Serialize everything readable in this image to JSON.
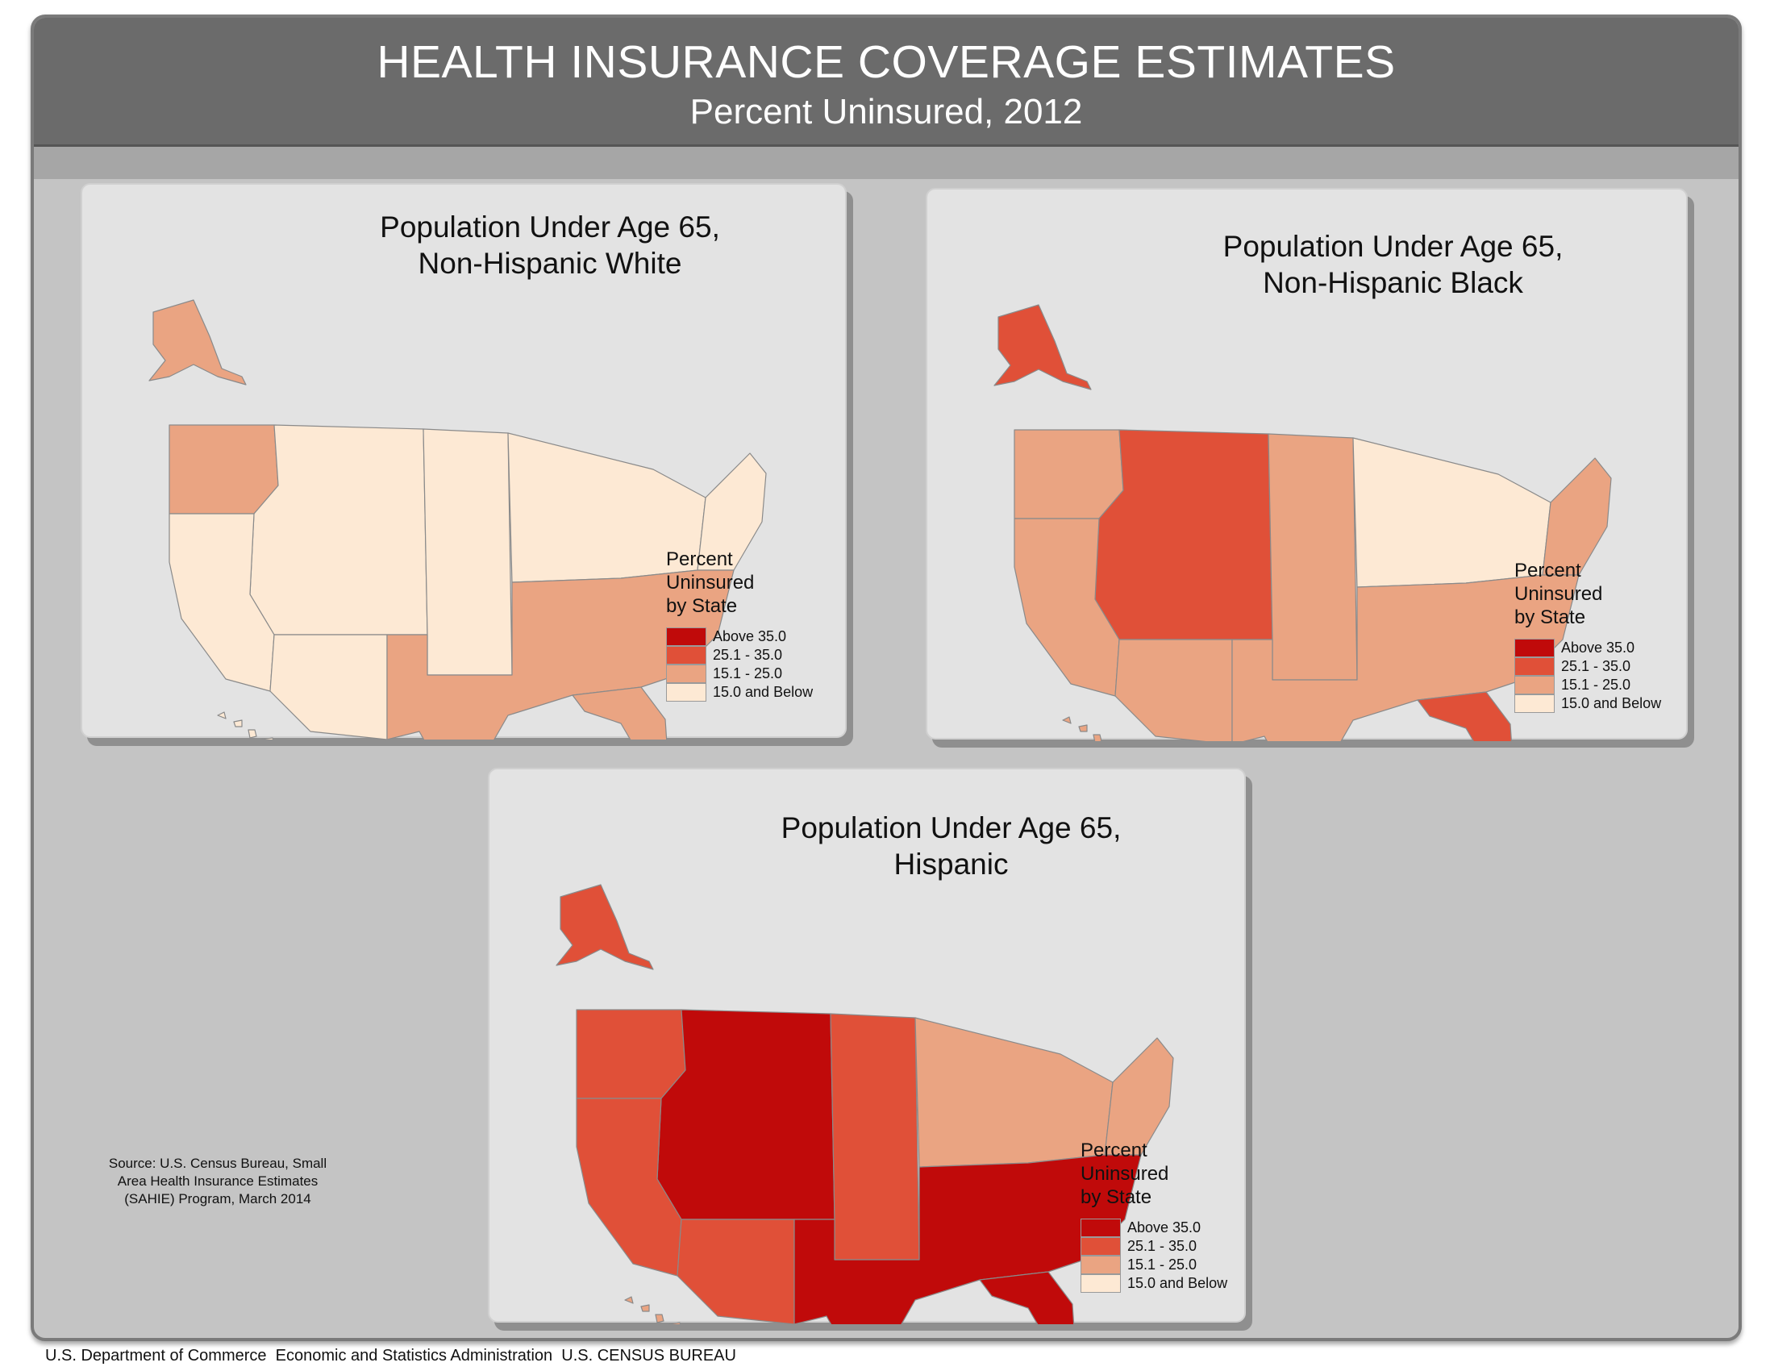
{
  "header": {
    "title": "HEALTH INSURANCE COVERAGE ESTIMATES",
    "subtitle": "Percent Uninsured, 2012"
  },
  "colors": {
    "above_35": "#c00a0a",
    "25_35": "#e05038",
    "15_25": "#eaa482",
    "below_15": "#fde9d4"
  },
  "legend": {
    "heading_1": "Percent",
    "heading_2": "Uninsured",
    "heading_3": "by State",
    "classes": [
      {
        "label": "Above 35.0",
        "key": "above_35"
      },
      {
        "label": "25.1 - 35.0",
        "key": "25_35"
      },
      {
        "label": "15.1 - 25.0",
        "key": "15_25"
      },
      {
        "label": "15.0 and Below",
        "key": "below_15"
      }
    ]
  },
  "maps": [
    {
      "line1": "Population Under Age 65,",
      "line2": "Non-Hispanic White",
      "regions": {
        "northwest": "15_25",
        "mountain": "below_15",
        "california": "below_15",
        "southwest": "below_15",
        "plains": "below_15",
        "midwest": "below_15",
        "northeast": "below_15",
        "south": "15_25",
        "florida": "15_25",
        "alaska": "15_25",
        "hawaii": "below_15"
      }
    },
    {
      "line1": "Population Under Age 65,",
      "line2": "Non-Hispanic Black",
      "regions": {
        "northwest": "15_25",
        "mountain": "25_35",
        "california": "15_25",
        "southwest": "15_25",
        "plains": "15_25",
        "midwest": "below_15",
        "northeast": "15_25",
        "south": "15_25",
        "florida": "25_35",
        "alaska": "25_35",
        "hawaii": "15_25"
      }
    },
    {
      "line1": "Population Under Age 65,",
      "line2": "Hispanic",
      "regions": {
        "northwest": "25_35",
        "mountain": "above_35",
        "california": "25_35",
        "southwest": "25_35",
        "plains": "25_35",
        "midwest": "15_25",
        "northeast": "15_25",
        "south": "above_35",
        "florida": "above_35",
        "alaska": "25_35",
        "hawaii": "15_25"
      }
    }
  ],
  "source": {
    "line1": "Source: U.S. Census Bureau, Small",
    "line2": "Area Health Insurance Estimates",
    "line3": "(SAHIE) Program, March 2014"
  },
  "footer": {
    "text": "U.S. Department of Commerce  Economic and Statistics Administration  U.S. CENSUS BUREAU"
  }
}
